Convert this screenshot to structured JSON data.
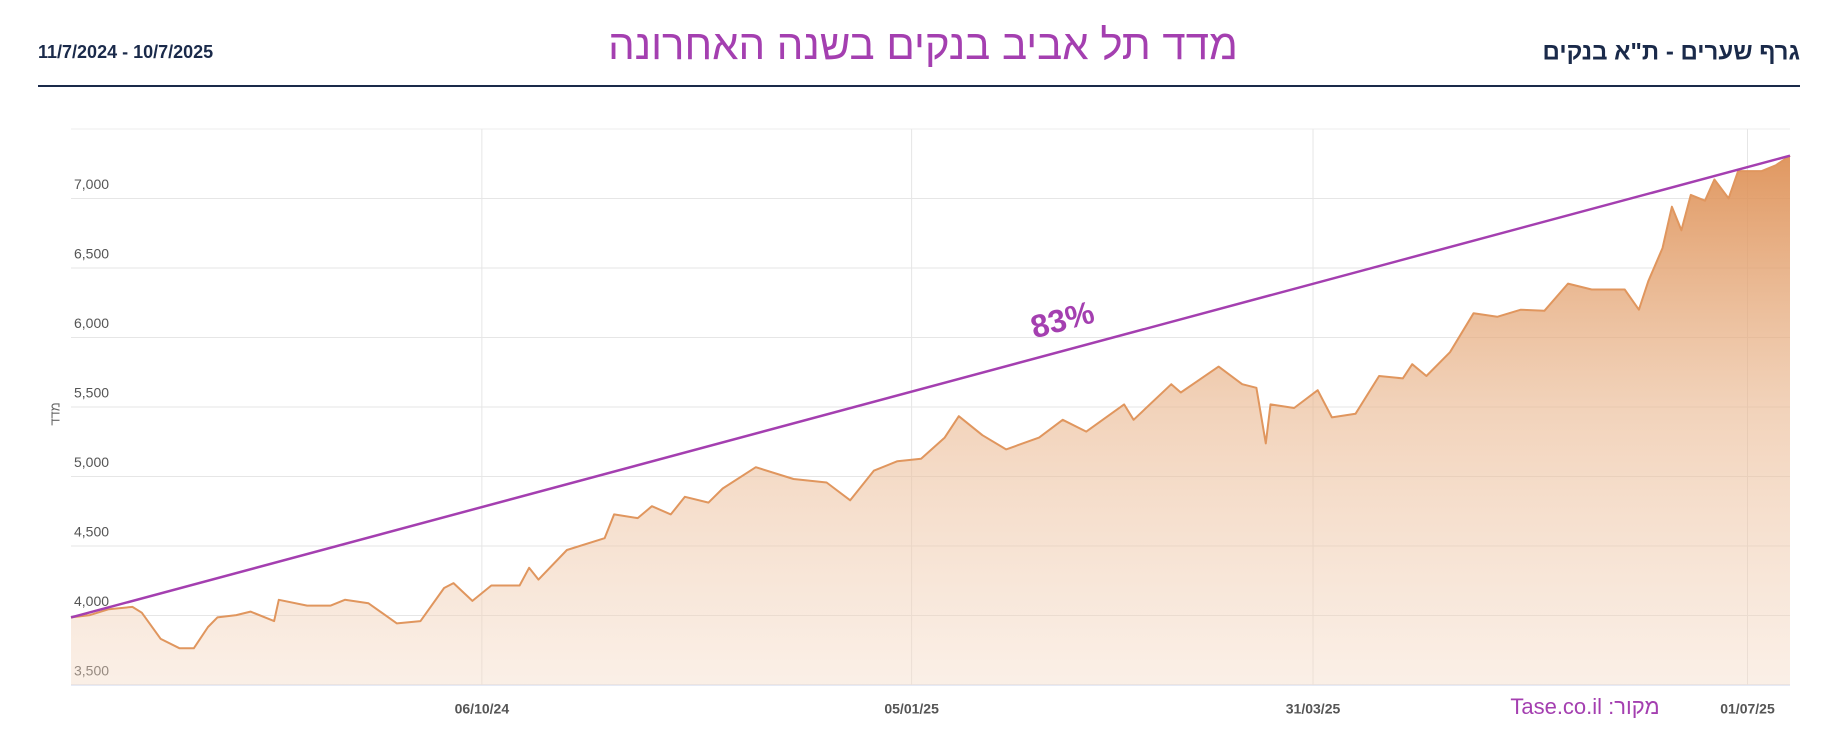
{
  "header": {
    "label": "גרף שערים - ת\"א בנקים",
    "date_range": "11/7/2024 - 10/7/2025"
  },
  "chart_data": {
    "type": "area",
    "title": "מדד תל אביב בנקים בשנה האחרונה",
    "y_label": "מדד",
    "source": "מקור: Tase.co.il",
    "x": [
      "11/07/24",
      "15/07/24",
      "19/07/24",
      "24/07/24",
      "26/07/24",
      "30/07/24",
      "03/08/24",
      "06/08/24",
      "09/08/24",
      "11/08/24",
      "15/08/24",
      "18/08/24",
      "23/08/24",
      "24/08/24",
      "30/08/24",
      "04/09/24",
      "07/09/24",
      "12/09/24",
      "18/09/24",
      "23/09/24",
      "28/09/24",
      "30/09/24",
      "04/10/24",
      "08/10/24",
      "14/10/24",
      "16/10/24",
      "18/10/24",
      "24/10/24",
      "01/11/24",
      "03/11/24",
      "08/11/24",
      "11/11/24",
      "15/11/24",
      "18/11/24",
      "23/11/24",
      "26/11/24",
      "03/12/24",
      "11/12/24",
      "18/12/24",
      "23/12/24",
      "28/12/24",
      "02/01/25",
      "07/01/25",
      "12/01/25",
      "15/01/25",
      "20/01/25",
      "25/01/25",
      "01/02/25",
      "06/02/25",
      "11/02/25",
      "19/02/25",
      "21/02/25",
      "01/03/25",
      "03/03/25",
      "11/03/25",
      "16/03/25",
      "19/03/25",
      "21/03/25",
      "22/03/25",
      "27/03/25",
      "01/04/25",
      "04/04/25",
      "09/04/25",
      "14/04/25",
      "19/04/25",
      "21/04/25",
      "24/04/25",
      "29/04/25",
      "04/05/25",
      "09/05/25",
      "14/05/25",
      "19/05/25",
      "24/05/25",
      "29/05/25",
      "05/06/25",
      "08/06/25",
      "10/06/25",
      "13/06/25",
      "15/06/25",
      "17/06/25",
      "19/06/25",
      "22/06/25",
      "24/06/25",
      "27/06/25",
      "29/06/25",
      "04/07/25",
      "07/07/25",
      "10/07/25"
    ],
    "series": [
      {
        "color": "#e0965e",
        "values": [
          3986,
          4003,
          4045,
          4062,
          4020,
          3832,
          3764,
          3764,
          3917,
          3986,
          4003,
          4028,
          3960,
          4113,
          4071,
          4071,
          4113,
          4088,
          3943,
          3960,
          4198,
          4233,
          4105,
          4216,
          4216,
          4343,
          4258,
          4471,
          4556,
          4727,
          4701,
          4786,
          4727,
          4854,
          4812,
          4914,
          5067,
          4982,
          4957,
          4829,
          5042,
          5110,
          5127,
          5280,
          5434,
          5297,
          5195,
          5280,
          5408,
          5323,
          5519,
          5408,
          5664,
          5604,
          5791,
          5664,
          5638,
          5238,
          5519,
          5493,
          5621,
          5425,
          5451,
          5723,
          5706,
          5808,
          5723,
          5894,
          6175,
          6149,
          6200,
          6192,
          6388,
          6345,
          6345,
          6200,
          6405,
          6643,
          6941,
          6771,
          7026,
          6984,
          7137,
          7001,
          7197,
          7197,
          7239,
          7308
        ]
      }
    ],
    "xlim": [
      "11/07/24",
      "10/07/25"
    ],
    "xticks": [
      "06/10/24",
      "05/01/25",
      "31/03/25",
      "01/07/25"
    ],
    "ylim": [
      3500,
      7500
    ],
    "yticks": [
      {
        "value": 3500,
        "label": "3,500"
      },
      {
        "value": 4000,
        "label": "4,000"
      },
      {
        "value": 4500,
        "label": "4,500"
      },
      {
        "value": 5000,
        "label": "5,000"
      },
      {
        "value": 5500,
        "label": "5,500"
      },
      {
        "value": 6000,
        "label": "6,000"
      },
      {
        "value": 6500,
        "label": "6,500"
      },
      {
        "value": 7000,
        "label": "7,000"
      }
    ],
    "grid": true,
    "trend_line": {
      "values": [
        3986,
        7308
      ],
      "color": "#a43fb0",
      "label": "83%"
    }
  }
}
